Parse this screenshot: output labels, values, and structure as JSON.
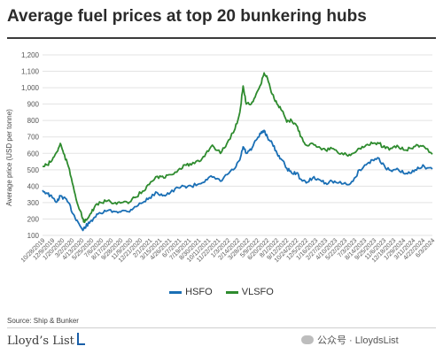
{
  "title": "Average fuel prices at top 20 bunkering hubs",
  "source": "Source: Ship & Bunker",
  "logo_text": "Lloyd’s List",
  "watermark_text": "公众号 · LloydsList",
  "colors": {
    "hsfo": "#1a6fb5",
    "vlsfo": "#2e8b2e",
    "grid": "#e3e3e3",
    "axis_text": "#555555"
  },
  "chart_data": {
    "type": "line",
    "title": "Average fuel prices at top 20 bunkering hubs",
    "ylabel": "Average price (USD per tonne)",
    "xlabel": "",
    "ylim": [
      100,
      1200
    ],
    "yticks": [
      100,
      200,
      300,
      400,
      500,
      600,
      700,
      800,
      900,
      1000,
      1100,
      1200
    ],
    "ytick_labels": [
      "100",
      "200",
      "300",
      "400",
      "500",
      "600",
      "700",
      "800",
      "900",
      "1,000",
      "1,100",
      "1,200"
    ],
    "grid": true,
    "legend": "bottom",
    "x_start": "2019-10-28",
    "x_end": "2024-06-10",
    "xtick_labels": [
      "10/28/2019",
      "12/9/2019",
      "1/20/2020",
      "3/2/2020",
      "4/13/2020",
      "5/25/2020",
      "7/6/2020",
      "8/17/2020",
      "9/28/2020",
      "11/9/2020",
      "12/21/2020",
      "2/1/2021",
      "3/15/2021",
      "4/26/2021",
      "6/7/2021",
      "7/19/2021",
      "8/30/2021",
      "10/11/2021",
      "11/22/2021",
      "1/3/2022",
      "2/14/2022",
      "3/28/2022",
      "5/9/2022",
      "6/20/2022",
      "8/1/2022",
      "9/12/2022",
      "10/24/2022",
      "12/5/2022",
      "1/16/2023",
      "2/27/2023",
      "4/10/2023",
      "5/22/2023",
      "7/3/2023",
      "8/14/2023",
      "9/25/2023",
      "11/6/2023",
      "12/18/2023",
      "1/29/2024",
      "3/11/2024",
      "4/22/2024",
      "6/3/2024"
    ],
    "series": [
      {
        "name": "HSFO",
        "color": "#1a6fb5",
        "points": [
          [
            "2019-10-28",
            375
          ],
          [
            "2019-11-18",
            355
          ],
          [
            "2019-12-09",
            330
          ],
          [
            "2019-12-30",
            305
          ],
          [
            "2020-01-13",
            340
          ],
          [
            "2020-01-27",
            330
          ],
          [
            "2020-02-17",
            300
          ],
          [
            "2020-03-09",
            230
          ],
          [
            "2020-03-30",
            180
          ],
          [
            "2020-04-20",
            130
          ],
          [
            "2020-04-27",
            150
          ],
          [
            "2020-05-18",
            175
          ],
          [
            "2020-06-08",
            210
          ],
          [
            "2020-07-06",
            235
          ],
          [
            "2020-08-03",
            250
          ],
          [
            "2020-09-07",
            245
          ],
          [
            "2020-10-05",
            250
          ],
          [
            "2020-11-02",
            245
          ],
          [
            "2020-11-30",
            275
          ],
          [
            "2021-01-04",
            300
          ],
          [
            "2021-02-01",
            330
          ],
          [
            "2021-03-08",
            360
          ],
          [
            "2021-04-05",
            345
          ],
          [
            "2021-05-03",
            360
          ],
          [
            "2021-06-07",
            390
          ],
          [
            "2021-07-05",
            400
          ],
          [
            "2021-08-02",
            400
          ],
          [
            "2021-09-06",
            415
          ],
          [
            "2021-10-04",
            440
          ],
          [
            "2021-11-01",
            455
          ],
          [
            "2021-12-06",
            430
          ],
          [
            "2022-01-03",
            470
          ],
          [
            "2022-02-07",
            510
          ],
          [
            "2022-02-28",
            560
          ],
          [
            "2022-03-14",
            640
          ],
          [
            "2022-03-28",
            600
          ],
          [
            "2022-04-18",
            620
          ],
          [
            "2022-05-09",
            680
          ],
          [
            "2022-05-30",
            720
          ],
          [
            "2022-06-13",
            740
          ],
          [
            "2022-06-27",
            700
          ],
          [
            "2022-07-18",
            660
          ],
          [
            "2022-08-08",
            600
          ],
          [
            "2022-08-29",
            560
          ],
          [
            "2022-09-19",
            510
          ],
          [
            "2022-10-10",
            480
          ],
          [
            "2022-10-31",
            480
          ],
          [
            "2022-11-21",
            440
          ],
          [
            "2022-12-12",
            420
          ],
          [
            "2023-01-09",
            450
          ],
          [
            "2023-02-06",
            440
          ],
          [
            "2023-03-06",
            420
          ],
          [
            "2023-04-03",
            430
          ],
          [
            "2023-05-01",
            420
          ],
          [
            "2023-06-05",
            410
          ],
          [
            "2023-07-03",
            430
          ],
          [
            "2023-07-31",
            500
          ],
          [
            "2023-08-28",
            530
          ],
          [
            "2023-09-25",
            560
          ],
          [
            "2023-10-23",
            570
          ],
          [
            "2023-11-20",
            510
          ],
          [
            "2023-12-18",
            490
          ],
          [
            "2024-01-15",
            500
          ],
          [
            "2024-02-12",
            475
          ],
          [
            "2024-03-11",
            480
          ],
          [
            "2024-04-08",
            515
          ],
          [
            "2024-05-06",
            520
          ],
          [
            "2024-06-10",
            505
          ]
        ]
      },
      {
        "name": "VLSFO",
        "color": "#2e8b2e",
        "points": [
          [
            "2019-10-28",
            520
          ],
          [
            "2019-11-18",
            530
          ],
          [
            "2019-12-09",
            560
          ],
          [
            "2019-12-30",
            610
          ],
          [
            "2020-01-13",
            660
          ],
          [
            "2020-01-27",
            600
          ],
          [
            "2020-02-17",
            520
          ],
          [
            "2020-03-09",
            400
          ],
          [
            "2020-03-30",
            280
          ],
          [
            "2020-04-20",
            200
          ],
          [
            "2020-04-27",
            180
          ],
          [
            "2020-05-18",
            220
          ],
          [
            "2020-06-08",
            270
          ],
          [
            "2020-07-06",
            300
          ],
          [
            "2020-08-03",
            310
          ],
          [
            "2020-09-07",
            300
          ],
          [
            "2020-10-05",
            300
          ],
          [
            "2020-11-02",
            295
          ],
          [
            "2020-11-30",
            330
          ],
          [
            "2021-01-04",
            370
          ],
          [
            "2021-02-01",
            410
          ],
          [
            "2021-03-08",
            460
          ],
          [
            "2021-04-05",
            450
          ],
          [
            "2021-05-03",
            470
          ],
          [
            "2021-06-07",
            500
          ],
          [
            "2021-07-05",
            530
          ],
          [
            "2021-08-02",
            530
          ],
          [
            "2021-09-06",
            550
          ],
          [
            "2021-10-04",
            600
          ],
          [
            "2021-11-01",
            650
          ],
          [
            "2021-12-06",
            600
          ],
          [
            "2022-01-03",
            660
          ],
          [
            "2022-02-07",
            750
          ],
          [
            "2022-02-28",
            850
          ],
          [
            "2022-03-14",
            1010
          ],
          [
            "2022-03-28",
            900
          ],
          [
            "2022-04-18",
            900
          ],
          [
            "2022-05-09",
            960
          ],
          [
            "2022-05-30",
            1020
          ],
          [
            "2022-06-13",
            1090
          ],
          [
            "2022-06-27",
            1060
          ],
          [
            "2022-07-18",
            960
          ],
          [
            "2022-08-08",
            900
          ],
          [
            "2022-08-29",
            860
          ],
          [
            "2022-09-19",
            790
          ],
          [
            "2022-10-10",
            800
          ],
          [
            "2022-10-31",
            770
          ],
          [
            "2022-11-21",
            700
          ],
          [
            "2022-12-12",
            650
          ],
          [
            "2023-01-09",
            660
          ],
          [
            "2023-02-06",
            640
          ],
          [
            "2023-03-06",
            620
          ],
          [
            "2023-04-03",
            630
          ],
          [
            "2023-05-01",
            600
          ],
          [
            "2023-06-05",
            590
          ],
          [
            "2023-07-03",
            600
          ],
          [
            "2023-07-31",
            630
          ],
          [
            "2023-08-28",
            650
          ],
          [
            "2023-09-25",
            660
          ],
          [
            "2023-10-23",
            660
          ],
          [
            "2023-11-20",
            630
          ],
          [
            "2023-12-18",
            630
          ],
          [
            "2024-01-15",
            640
          ],
          [
            "2024-02-12",
            620
          ],
          [
            "2024-03-11",
            630
          ],
          [
            "2024-04-08",
            650
          ],
          [
            "2024-05-06",
            640
          ],
          [
            "2024-06-10",
            595
          ]
        ]
      }
    ]
  }
}
